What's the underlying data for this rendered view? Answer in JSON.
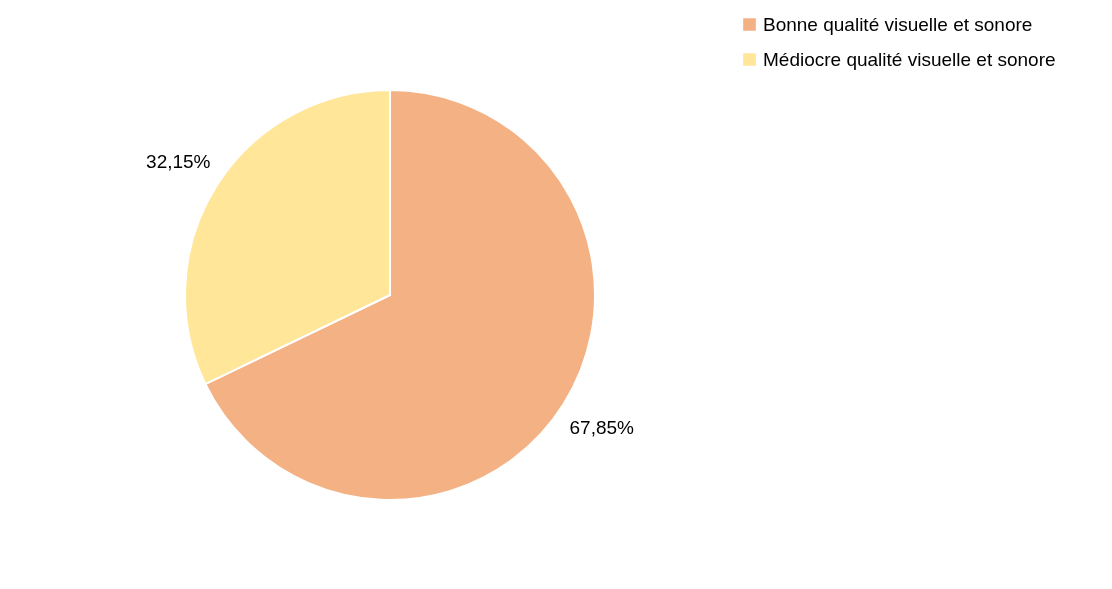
{
  "chart_data": {
    "type": "pie",
    "categories": [
      "Bonne qualité visuelle et sonore",
      "Médiocre qualité visuelle et sonore"
    ],
    "values": [
      67.85,
      32.15
    ],
    "colors": [
      "#f4b183",
      "#ffe699"
    ],
    "value_labels": [
      "67,85%",
      "32,15%"
    ],
    "legend": "right"
  }
}
